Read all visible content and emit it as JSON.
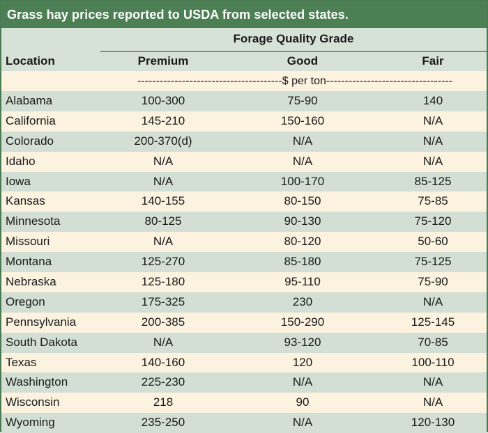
{
  "title": "Grass hay prices reported to USDA from selected states.",
  "header": {
    "group_label": "Forage Quality Grade",
    "location": "Location",
    "premium": "Premium",
    "good": "Good",
    "fair": "Fair"
  },
  "units": {
    "left_dashes": "---------------------------------------",
    "label": "$ per ton",
    "right_dashes": "----------------------------------"
  },
  "rows": [
    {
      "location": "Alabama",
      "premium": "100-300",
      "good": "75-90",
      "fair": "140"
    },
    {
      "location": "California",
      "premium": "145-210",
      "good": "150-160",
      "fair": "N/A"
    },
    {
      "location": "Colorado",
      "premium": "200-370(d)",
      "good": "N/A",
      "fair": "N/A"
    },
    {
      "location": "Idaho",
      "premium": "N/A",
      "good": "N/A",
      "fair": "N/A"
    },
    {
      "location": "Iowa",
      "premium": "N/A",
      "good": "100-170",
      "fair": "85-125"
    },
    {
      "location": "Kansas",
      "premium": "140-155",
      "good": "80-150",
      "fair": "75-85"
    },
    {
      "location": "Minnesota",
      "premium": "80-125",
      "good": "90-130",
      "fair": "75-120"
    },
    {
      "location": "Missouri",
      "premium": "N/A",
      "good": "80-120",
      "fair": "50-60"
    },
    {
      "location": "Montana",
      "premium": "125-270",
      "good": "85-180",
      "fair": "75-125"
    },
    {
      "location": "Nebraska",
      "premium": "125-180",
      "good": "95-110",
      "fair": "75-90"
    },
    {
      "location": "Oregon",
      "premium": "175-325",
      "good": "230",
      "fair": "N/A"
    },
    {
      "location": "Pennsylvania",
      "premium": "200-385",
      "good": "150-290",
      "fair": "125-145"
    },
    {
      "location": "South Dakota",
      "premium": "N/A",
      "good": "93-120",
      "fair": "70-85"
    },
    {
      "location": "Texas",
      "premium": "140-160",
      "good": "120",
      "fair": "100-110"
    },
    {
      "location": "Washington",
      "premium": "225-230",
      "good": "N/A",
      "fair": "N/A"
    },
    {
      "location": "Wisconsin",
      "premium": "218",
      "good": "90",
      "fair": "N/A"
    },
    {
      "location": "Wyoming",
      "premium": "235-250",
      "good": "N/A",
      "fair": "120-130"
    }
  ],
  "colors": {
    "title_bg": "#4d7f54",
    "band_green": "#d3dfd4",
    "band_cream": "#fbf2df"
  }
}
